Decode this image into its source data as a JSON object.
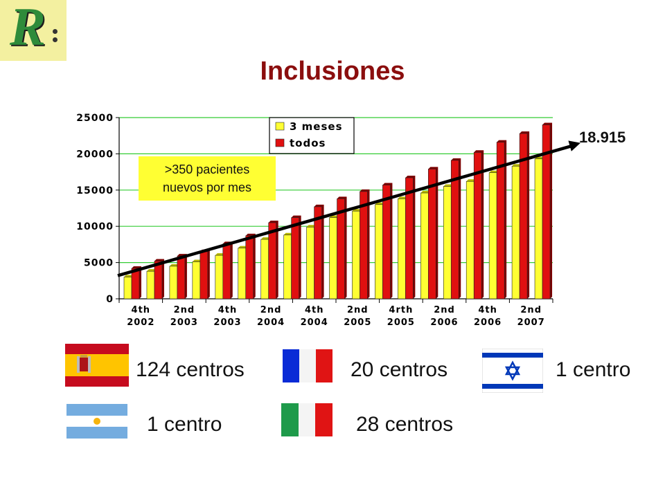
{
  "title": "Inclusiones",
  "callout": {
    "line1": ">350 pacientes",
    "line2": "nuevos por mes"
  },
  "total_label": "18.915",
  "colors": {
    "series_3meses": "#ffff33",
    "series_todos": "#e01010",
    "grid": "#33cc33",
    "title": "#8b0e0e"
  },
  "chart_data": {
    "type": "bar",
    "title": "",
    "xlabel": "",
    "ylabel": "",
    "ylim": [
      0,
      25000
    ],
    "yticks": [
      0,
      5000,
      10000,
      15000,
      20000,
      25000
    ],
    "grid": true,
    "legend_position": "top-center",
    "x_tick_labels": [
      [
        "4th",
        "2002"
      ],
      [
        "2nd",
        "2003"
      ],
      [
        "4th",
        "2003"
      ],
      [
        "2nd",
        "2004"
      ],
      [
        "4th",
        "2004"
      ],
      [
        "2nd",
        "2005"
      ],
      [
        "4rth",
        "2005"
      ],
      [
        "2nd",
        "2006"
      ],
      [
        "4th",
        "2006"
      ],
      [
        "2nd",
        "2007"
      ]
    ],
    "series": [
      {
        "name": "3 meses",
        "values": [
          3000,
          3800,
          4500,
          5100,
          6000,
          7000,
          8200,
          8800,
          9900,
          11200,
          12100,
          13000,
          13800,
          14600,
          15500,
          16200,
          17400,
          18300,
          19300
        ]
      },
      {
        "name": "todos",
        "values": [
          4200,
          5200,
          5900,
          6500,
          7600,
          8700,
          10500,
          11200,
          12700,
          13800,
          14800,
          15700,
          16700,
          17900,
          19100,
          20200,
          21600,
          22800,
          24000
        ]
      }
    ],
    "trend_line": {
      "from_value": 3200,
      "to_value": 21500
    }
  },
  "countries": [
    {
      "flag": "spain-flag",
      "label": "124 centros"
    },
    {
      "flag": "france-flag",
      "label": "20 centros"
    },
    {
      "flag": "israel-flag",
      "label": "1 centro"
    },
    {
      "flag": "argentina-flag",
      "label": "1 centro"
    },
    {
      "flag": "italy-flag",
      "label": "28 centros"
    }
  ]
}
